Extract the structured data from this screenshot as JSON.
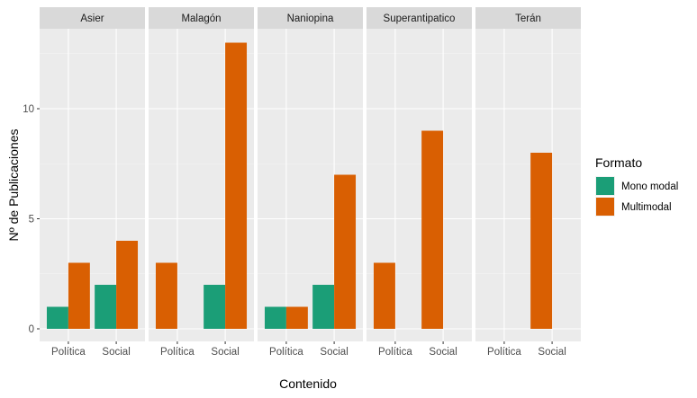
{
  "chart_data": {
    "type": "bar",
    "title": "",
    "xlabel": "Contenido",
    "ylabel": "Nº de Publicaciones",
    "ylim": [
      0,
      13.6
    ],
    "yticks": [
      0,
      5,
      10
    ],
    "ytick_labels": [
      "0",
      "5",
      "10"
    ],
    "categories": [
      "Política",
      "Social"
    ],
    "legend": {
      "title": "Formato",
      "placement": "right",
      "entries": [
        {
          "name": "Mono modal",
          "color": "#1B9E77"
        },
        {
          "name": "Multimodal",
          "color": "#D95F02"
        }
      ]
    },
    "facets": [
      {
        "name": "Asier",
        "bars": [
          {
            "category": "Política",
            "series": "Mono modal",
            "value": 1
          },
          {
            "category": "Política",
            "series": "Multimodal",
            "value": 3
          },
          {
            "category": "Social",
            "series": "Mono modal",
            "value": 2
          },
          {
            "category": "Social",
            "series": "Multimodal",
            "value": 4
          }
        ]
      },
      {
        "name": "Malagón",
        "bars": [
          {
            "category": "Política",
            "series": "Multimodal",
            "value": 3
          },
          {
            "category": "Social",
            "series": "Mono modal",
            "value": 2
          },
          {
            "category": "Social",
            "series": "Multimodal",
            "value": 13
          }
        ]
      },
      {
        "name": "Naniopina",
        "bars": [
          {
            "category": "Política",
            "series": "Mono modal",
            "value": 1
          },
          {
            "category": "Política",
            "series": "Multimodal",
            "value": 1
          },
          {
            "category": "Social",
            "series": "Mono modal",
            "value": 2
          },
          {
            "category": "Social",
            "series": "Multimodal",
            "value": 7
          }
        ]
      },
      {
        "name": "Superantipatico",
        "bars": [
          {
            "category": "Política",
            "series": "Multimodal",
            "value": 3
          },
          {
            "category": "Social",
            "series": "Multimodal",
            "value": 9
          }
        ]
      },
      {
        "name": "Terán",
        "bars": [
          {
            "category": "Social",
            "series": "Multimodal",
            "value": 8
          }
        ]
      }
    ]
  }
}
